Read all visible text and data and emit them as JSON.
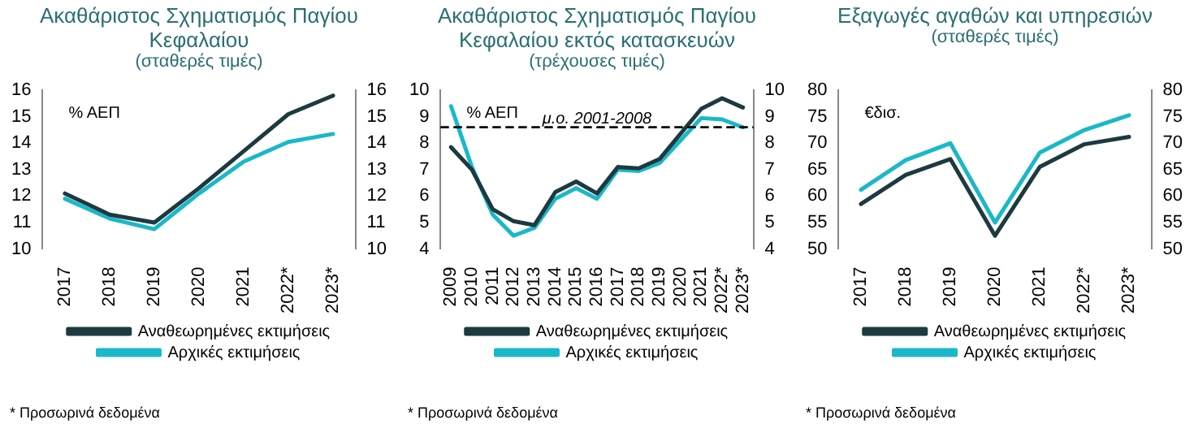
{
  "chart_data": [
    {
      "type": "line",
      "title": "Ακαθάριστος Σχηματισμός Παγίου Κεφαλαίου",
      "subtitle": "(σταθερές τιμές)",
      "categories": [
        "2017",
        "2018",
        "2019",
        "2020",
        "2021",
        "2022*",
        "2023*"
      ],
      "series": [
        {
          "name": "Αναθεωρημένες εκτιμήσεις",
          "color": "#1c3a3f",
          "values": [
            12.1,
            11.3,
            11.0,
            12.3,
            13.7,
            15.1,
            15.8
          ]
        },
        {
          "name": "Αρχικές εκτιμήσεις",
          "color": "#1ab8c8",
          "values": [
            11.9,
            11.15,
            10.75,
            12.1,
            13.3,
            14.05,
            14.35
          ]
        }
      ],
      "ylim": [
        10,
        16
      ],
      "yticks": [
        10,
        11,
        12,
        13,
        14,
        15,
        16
      ],
      "y2lim": [
        10,
        16
      ],
      "y2ticks": [
        10,
        11,
        12,
        13,
        14,
        15,
        16
      ],
      "legend": "bottom",
      "grid": false,
      "marker": "none",
      "annotations": [
        "% ΑΕΠ",
        "* Προσωρινά δεδομένα"
      ]
    },
    {
      "type": "line",
      "title": "Ακαθάριστος Σχηματισμός Παγίου Κεφαλαίου εκτός κατασκευών",
      "subtitle": "(τρέχουσες τιμές)",
      "categories": [
        "2009",
        "2010",
        "2011",
        "2012",
        "2013",
        "2014",
        "2015",
        "2016",
        "2017",
        "2018",
        "2019",
        "2020",
        "2021",
        "2022*",
        "2023*"
      ],
      "series": [
        {
          "name": "Αναθεωρημένες εκτιμήσεις",
          "color": "#1c3a3f",
          "values": [
            7.85,
            7.0,
            5.5,
            5.05,
            4.9,
            6.15,
            6.55,
            6.1,
            7.1,
            7.05,
            7.4,
            8.35,
            9.3,
            9.7,
            9.35
          ]
        },
        {
          "name": "Αρχικές εκτιμήσεις",
          "color": "#1ab8c8",
          "values": [
            9.4,
            7.1,
            5.3,
            4.5,
            4.8,
            5.9,
            6.3,
            5.9,
            7.0,
            6.95,
            7.25,
            8.1,
            8.95,
            8.9,
            8.6
          ]
        }
      ],
      "ylim": [
        4,
        10
      ],
      "yticks": [
        4,
        5,
        6,
        7,
        8,
        9,
        10
      ],
      "y2lim": [
        4,
        10
      ],
      "y2ticks": [
        4,
        5,
        6,
        7,
        8,
        9,
        10
      ],
      "ref_lines": [
        {
          "axis": "y",
          "value": 8.6,
          "label": "μ.ο. 2001-2008",
          "color": "#000000",
          "line_style": "dashed"
        }
      ],
      "legend": "bottom",
      "grid": false,
      "marker": "none",
      "annotations": [
        "% ΑΕΠ",
        "* Προσωρινά δεδομένα"
      ]
    },
    {
      "type": "line",
      "title": "Εξαγωγές αγαθών και υπηρεσιών",
      "subtitle": "(σταθερές τιμές)",
      "categories": [
        "2017",
        "2018",
        "2019",
        "2020",
        "2021",
        "2022*",
        "2023*"
      ],
      "series": [
        {
          "name": "Αναθεωρημένες εκτιμήσεις",
          "color": "#1c3a3f",
          "values": [
            58.5,
            64.0,
            67.0,
            52.5,
            65.5,
            69.8,
            71.2
          ]
        },
        {
          "name": "Αρχικές εκτιμήσεις",
          "color": "#1ab8c8",
          "values": [
            61.2,
            66.8,
            70.0,
            55.0,
            68.2,
            72.5,
            75.3
          ]
        }
      ],
      "ylim": [
        50,
        80
      ],
      "yticks": [
        50,
        55,
        60,
        65,
        70,
        75,
        80
      ],
      "y2lim": [
        50,
        80
      ],
      "y2ticks": [
        50,
        55,
        60,
        65,
        70,
        75,
        80
      ],
      "legend": "bottom",
      "grid": false,
      "marker": "none",
      "annotations": [
        "€δισ.",
        "* Προσωρινά δεδομένα"
      ]
    }
  ]
}
